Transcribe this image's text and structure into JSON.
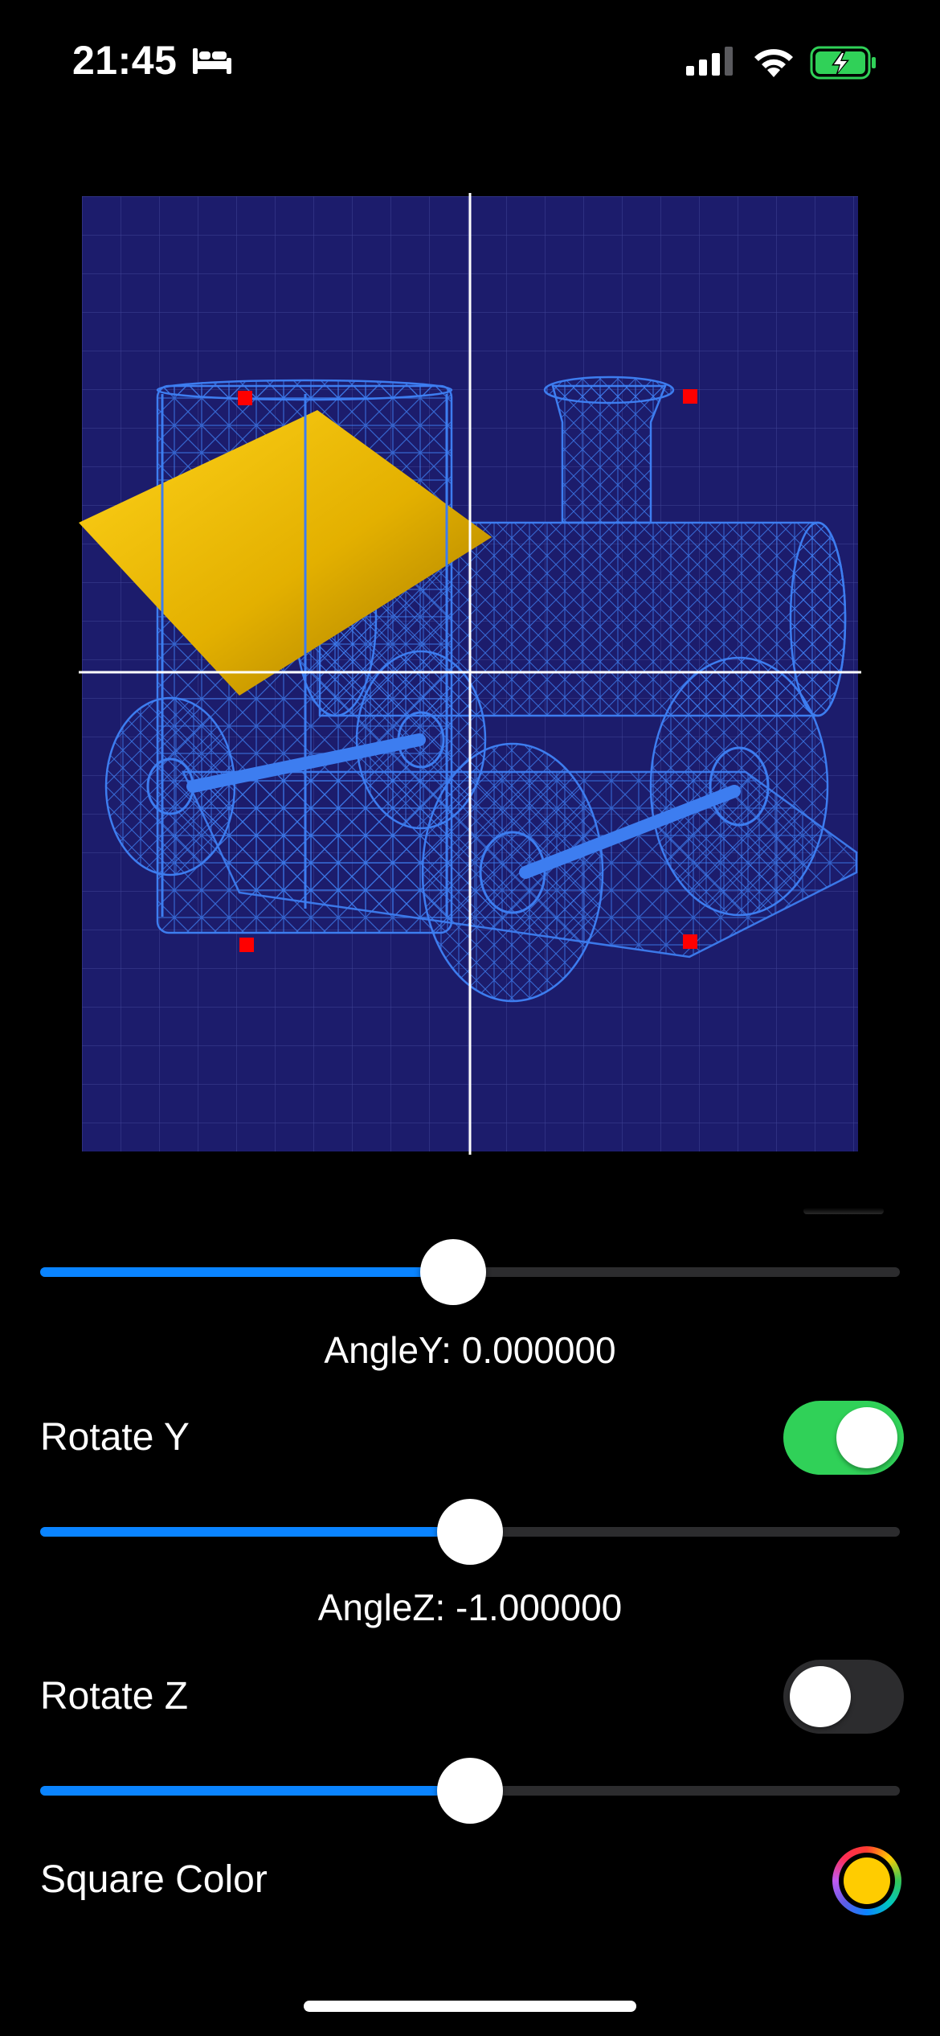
{
  "status_bar": {
    "time": "21:45",
    "icons": [
      "sleep-bed-icon",
      "cellular-signal-icon",
      "wifi-icon",
      "battery-charging-icon"
    ],
    "battery_color": "#30d158"
  },
  "viewport": {
    "background_color": "#1c1c6c",
    "wireframe_color": "#3d7df0",
    "square_color": "#f5c400",
    "marker_color": "#ff0000",
    "axis_color": "#ffffff"
  },
  "controls": {
    "slider1": {
      "value": 0.48
    },
    "angle_y_label": "AngleY: 0.000000",
    "rotate_y": {
      "label": "Rotate Y",
      "on": true
    },
    "slider2": {
      "value": 0.5
    },
    "angle_z_label": "AngleZ: -1.000000",
    "rotate_z": {
      "label": "Rotate Z",
      "on": false
    },
    "slider3": {
      "value": 0.5
    },
    "square_color": {
      "label": "Square Color",
      "value": "#ffcc00"
    }
  },
  "accent_colors": {
    "slider_fill": "#0a84ff",
    "toggle_on": "#30d158",
    "track": "#2c2c2e"
  }
}
